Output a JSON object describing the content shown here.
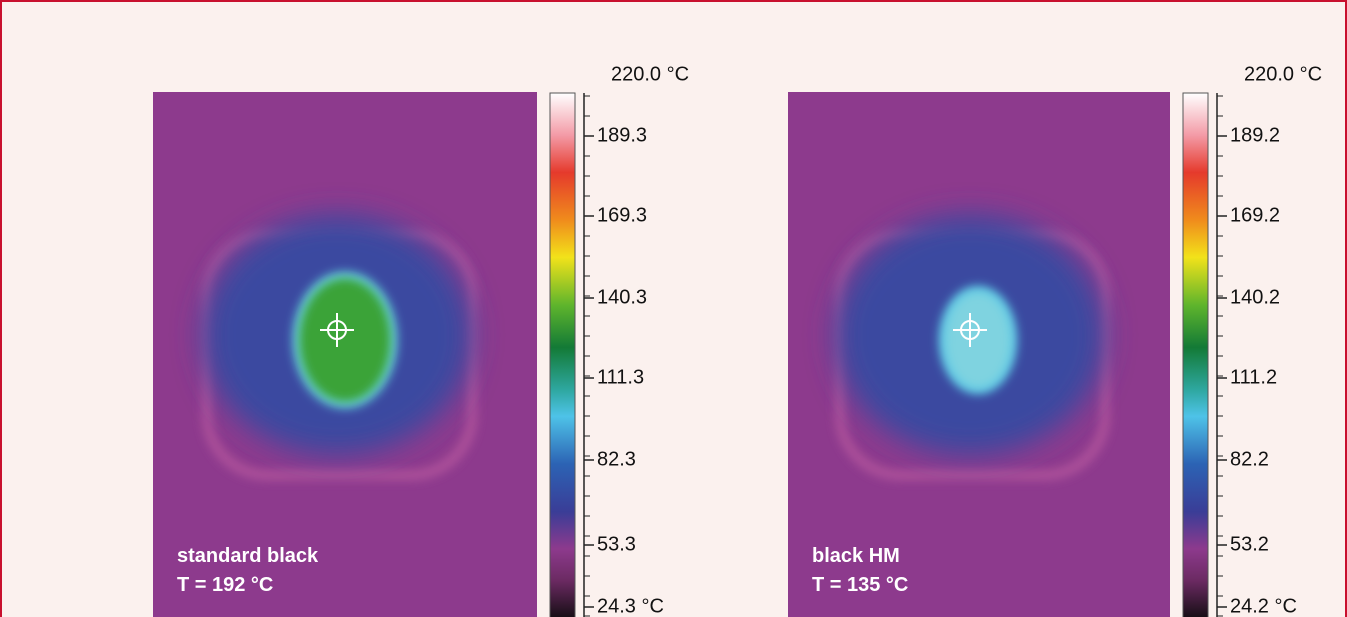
{
  "panels": [
    {
      "label": [
        "standard black",
        "T = 192 °C"
      ],
      "scale": {
        "max": "220.0 °C",
        "ticks": [
          "189.3",
          "169.3",
          "140.3",
          "111.3",
          "82.3",
          "53.3",
          "24.3 °C"
        ]
      }
    },
    {
      "label": [
        "black HM",
        "T = 135 °C"
      ],
      "scale": {
        "max": "220.0 °C",
        "ticks": [
          "189.2",
          "169.2",
          "140.2",
          "111.2",
          "82.2",
          "53.2",
          "24.2 °C"
        ]
      }
    }
  ]
}
